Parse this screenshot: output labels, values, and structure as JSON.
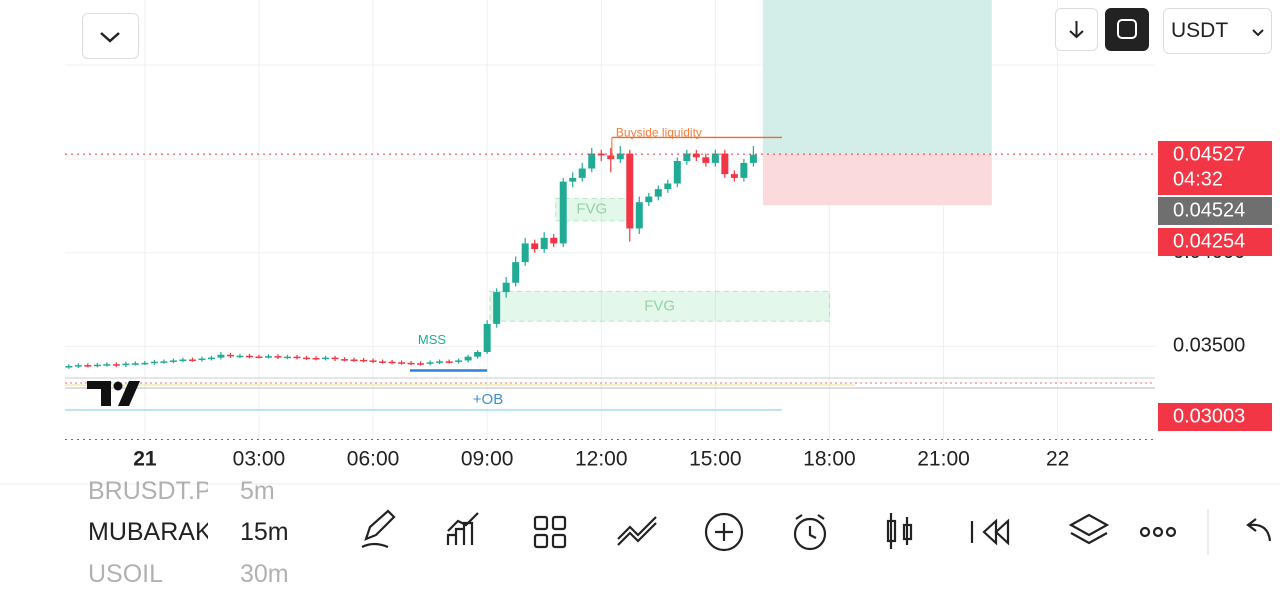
{
  "header": {
    "currency": "USDT"
  },
  "chart_data": {
    "type": "candlestick",
    "x": [
      -2,
      -1.75,
      -1.5,
      -1.25,
      -1,
      -0.75,
      -0.5,
      -0.25,
      0,
      0.25,
      0.5,
      0.75,
      1,
      1.25,
      1.5,
      1.75,
      2,
      2.25,
      2.5,
      2.75,
      3,
      3.25,
      3.5,
      3.75,
      4,
      4.25,
      4.5,
      4.75,
      5,
      5.25,
      5.5,
      5.75,
      6,
      6.25,
      6.5,
      6.75,
      7,
      7.25,
      7.5,
      7.75,
      8,
      8.25,
      8.5,
      8.75,
      9,
      9.25,
      9.5,
      9.75,
      10,
      10.25,
      10.5,
      10.75,
      11,
      11.25,
      11.5,
      11.75,
      12,
      12.25,
      12.5,
      12.75,
      13,
      13.25,
      13.5,
      13.75,
      14,
      14.25,
      14.5,
      14.75,
      15,
      15.25,
      15.5,
      15.75,
      16
    ],
    "open": [
      0.0339,
      0.03395,
      0.034,
      0.03398,
      0.03402,
      0.03405,
      0.034,
      0.03408,
      0.0341,
      0.03412,
      0.03418,
      0.0342,
      0.03425,
      0.0343,
      0.03428,
      0.03435,
      0.0344,
      0.03455,
      0.03448,
      0.0345,
      0.03446,
      0.03445,
      0.03448,
      0.03442,
      0.03445,
      0.0344,
      0.03438,
      0.03435,
      0.0344,
      0.03432,
      0.0343,
      0.03428,
      0.03425,
      0.0342,
      0.03418,
      0.03415,
      0.03412,
      0.0341,
      0.03408,
      0.03415,
      0.0342,
      0.03418,
      0.03425,
      0.03445,
      0.0347,
      0.0362,
      0.0379,
      0.0384,
      0.0395,
      0.0405,
      0.0402,
      0.0408,
      0.0405,
      0.0438,
      0.044,
      0.0445,
      0.0453,
      0.0452,
      0.045,
      0.0453,
      0.0413,
      0.0427,
      0.043,
      0.0434,
      0.0437,
      0.0449,
      0.0453,
      0.0451,
      0.0448,
      0.0453,
      0.0442,
      0.044,
      0.0448
    ],
    "high": [
      0.03405,
      0.0341,
      0.0341,
      0.03412,
      0.03415,
      0.03415,
      0.03418,
      0.0342,
      0.03422,
      0.03428,
      0.0343,
      0.03435,
      0.0344,
      0.0344,
      0.03445,
      0.0345,
      0.0347,
      0.03465,
      0.0346,
      0.0346,
      0.03456,
      0.03458,
      0.03458,
      0.03455,
      0.03455,
      0.0345,
      0.03448,
      0.0345,
      0.0345,
      0.03442,
      0.0344,
      0.03438,
      0.03435,
      0.0343,
      0.03428,
      0.03425,
      0.03422,
      0.0342,
      0.03425,
      0.0343,
      0.0343,
      0.03435,
      0.03455,
      0.0348,
      0.0364,
      0.0381,
      0.0387,
      0.0398,
      0.0408,
      0.0407,
      0.0411,
      0.041,
      0.044,
      0.0443,
      0.0448,
      0.0456,
      0.0455,
      0.0456,
      0.0457,
      0.0455,
      0.043,
      0.0432,
      0.0436,
      0.0439,
      0.0451,
      0.0455,
      0.0455,
      0.0453,
      0.0455,
      0.0455,
      0.0444,
      0.045,
      0.0457
    ],
    "low": [
      0.0338,
      0.03385,
      0.03388,
      0.03388,
      0.03392,
      0.0339,
      0.0339,
      0.03398,
      0.034,
      0.03402,
      0.03408,
      0.0341,
      0.03415,
      0.03418,
      0.03418,
      0.03425,
      0.0343,
      0.03438,
      0.03438,
      0.03436,
      0.03435,
      0.03435,
      0.03432,
      0.03432,
      0.0343,
      0.03428,
      0.03425,
      0.03425,
      0.03422,
      0.0342,
      0.03418,
      0.03415,
      0.0341,
      0.03408,
      0.03405,
      0.03402,
      0.034,
      0.03398,
      0.03398,
      0.03405,
      0.03408,
      0.03408,
      0.03415,
      0.03435,
      0.0346,
      0.036,
      0.0376,
      0.0382,
      0.0393,
      0.04,
      0.04,
      0.0403,
      0.0403,
      0.0435,
      0.0438,
      0.0443,
      0.0449,
      0.0443,
      0.0448,
      0.0406,
      0.041,
      0.0425,
      0.0428,
      0.0432,
      0.0435,
      0.0447,
      0.0449,
      0.0446,
      0.0446,
      0.044,
      0.0438,
      0.0438,
      0.0446
    ],
    "close": [
      0.03395,
      0.034,
      0.03398,
      0.03402,
      0.03405,
      0.034,
      0.03408,
      0.0341,
      0.03412,
      0.03418,
      0.0342,
      0.03425,
      0.0343,
      0.03428,
      0.03435,
      0.0344,
      0.03455,
      0.03448,
      0.0345,
      0.03446,
      0.03445,
      0.03448,
      0.03442,
      0.03445,
      0.0344,
      0.03438,
      0.03435,
      0.0344,
      0.03432,
      0.0343,
      0.03428,
      0.03425,
      0.0342,
      0.03418,
      0.03415,
      0.03412,
      0.0341,
      0.03408,
      0.03415,
      0.0342,
      0.03418,
      0.03425,
      0.03445,
      0.0347,
      0.0362,
      0.0379,
      0.0384,
      0.0395,
      0.0405,
      0.0402,
      0.0408,
      0.0405,
      0.0438,
      0.044,
      0.0445,
      0.0453,
      0.0452,
      0.045,
      0.0453,
      0.0413,
      0.0427,
      0.043,
      0.0434,
      0.0437,
      0.0449,
      0.0453,
      0.0451,
      0.0448,
      0.0453,
      0.0442,
      0.044,
      0.0448,
      0.04524
    ],
    "up_color": "#22ab94",
    "down_color": "#f23645",
    "xlim": [
      -2.1,
      26.56
    ],
    "xticks": [
      {
        "value": 0,
        "label": "21"
      },
      {
        "value": 3,
        "label": "03:00"
      },
      {
        "value": 6,
        "label": "06:00"
      },
      {
        "value": 9,
        "label": "09:00"
      },
      {
        "value": 12,
        "label": "12:00"
      },
      {
        "value": 15,
        "label": "15:00"
      },
      {
        "value": 18,
        "label": "18:00"
      },
      {
        "value": 21,
        "label": "21:00"
      },
      {
        "value": 24,
        "label": "22"
      }
    ],
    "ylim": [
      0.03,
      0.0535
    ],
    "yticks": [
      {
        "value": 0.035,
        "label": "0.03500"
      },
      {
        "value": 0.04,
        "label": "0.04000"
      },
      {
        "value": 0.045,
        "label": "0.04500"
      }
    ],
    "grid": true,
    "last_price": {
      "value": 0.04527,
      "label": "0.04527",
      "countdown": "04:32"
    },
    "mark_price": {
      "value": 0.04524,
      "label": "0.04524"
    },
    "low_line": {
      "value": 0.03003,
      "label": "0.03003"
    },
    "position": {
      "entry": 0.04527,
      "stop": 0.04254,
      "stop_label": "0.04254",
      "x_range": [
        16.25,
        22.27
      ]
    },
    "fvg_zones": [
      {
        "label": "FVG",
        "x_range": [
          10.8,
          12.7
        ],
        "y_range": [
          0.0417,
          0.0429
        ]
      },
      {
        "label": "FVG",
        "x_range": [
          9.07,
          18.0
        ],
        "y_range": [
          0.03634,
          0.03794
        ]
      }
    ],
    "buyside_liquidity": {
      "label": "Buyside liquidity",
      "price": 0.04616,
      "x_range": [
        12.28,
        16.75
      ]
    },
    "mss": {
      "label": "MSS",
      "price": 0.03371,
      "x_range": [
        6.97,
        9.0
      ]
    },
    "order_block": {
      "label": "+OB",
      "price": 0.0316,
      "x_range": [
        -2.1,
        16.75
      ]
    }
  },
  "watchlist": [
    {
      "symbol": "BRUSDT.P",
      "interval": "5m"
    },
    {
      "symbol": "MUBARAKUSDT.P",
      "interval": "15m"
    },
    {
      "symbol": "USOIL",
      "interval": "30m"
    }
  ]
}
